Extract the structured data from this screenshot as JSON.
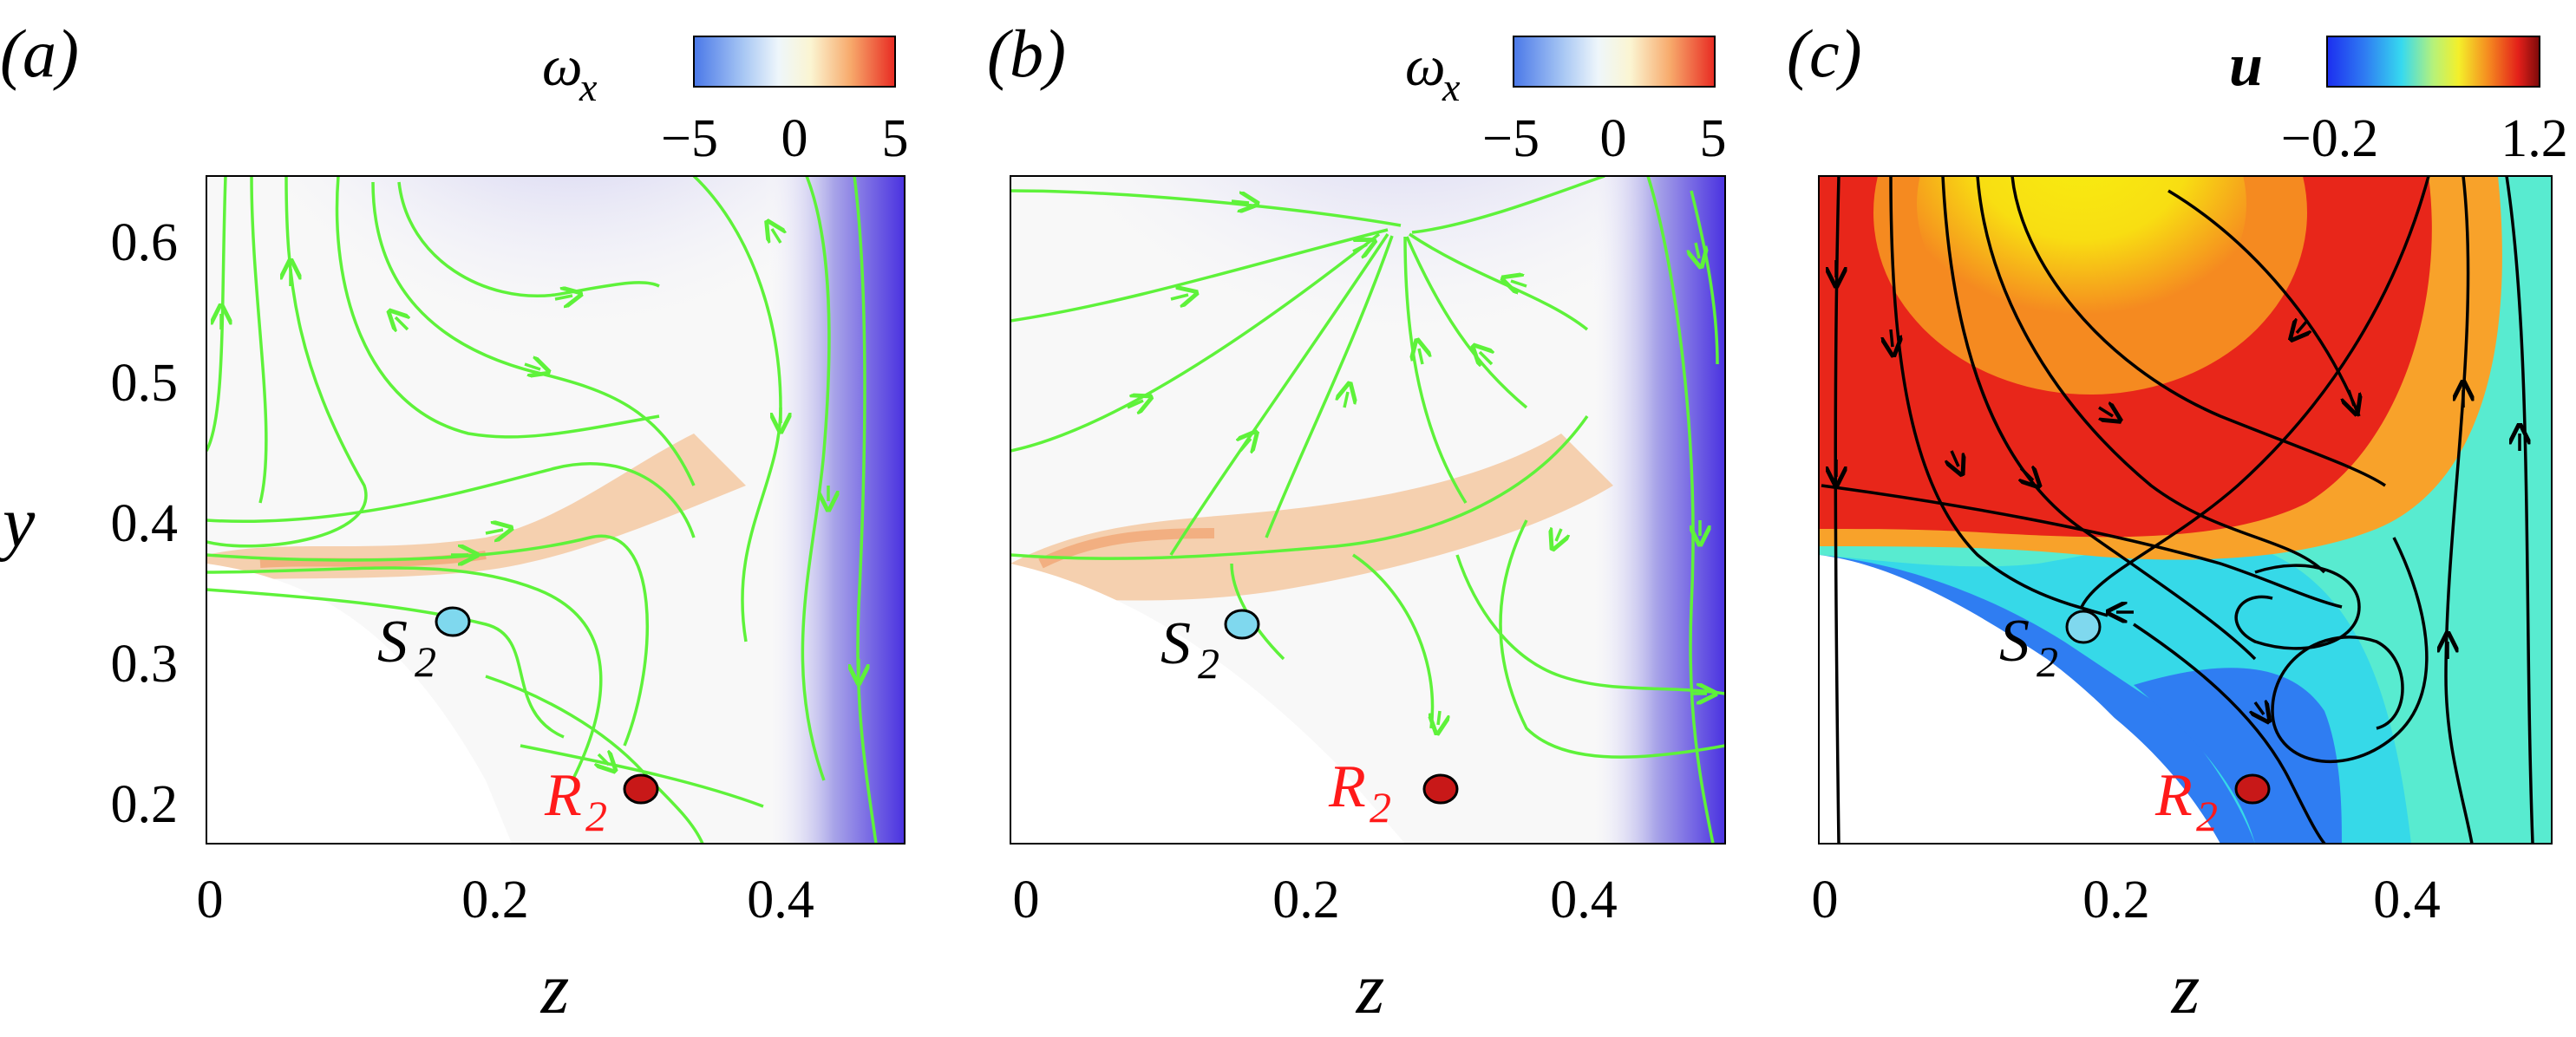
{
  "colors": {
    "streamline_green": "#5ef23a",
    "streamline_black": "#000000",
    "marker_s2": "#7fd8ee",
    "marker_r2": "#c81818",
    "r2_label": "#ff1a1a"
  },
  "panels": [
    {
      "label": "(a)",
      "colorbar": {
        "title": "ω",
        "title_sub": "x",
        "ticks": [
          "−5",
          "0",
          "5"
        ]
      },
      "xticks": [
        "0",
        "0.2",
        "0.4"
      ],
      "xlabel": "z",
      "markers": [
        {
          "name": "s2",
          "text": "S",
          "sub": "2"
        },
        {
          "name": "r2",
          "text": "R",
          "sub": "2"
        }
      ]
    },
    {
      "label": "(b)",
      "colorbar": {
        "title": "ω",
        "title_sub": "x",
        "ticks": [
          "−5",
          "0",
          "5"
        ]
      },
      "xticks": [
        "0",
        "0.2",
        "0.4"
      ],
      "xlabel": "z",
      "markers": [
        {
          "name": "s2",
          "text": "S",
          "sub": "2"
        },
        {
          "name": "r2",
          "text": "R",
          "sub": "2"
        }
      ]
    },
    {
      "label": "(c)",
      "colorbar": {
        "title": "u",
        "ticks": [
          "−0.2",
          "1.2"
        ]
      },
      "xticks": [
        "0",
        "0.2",
        "0.4"
      ],
      "xlabel": "z",
      "markers": [
        {
          "name": "s2",
          "text": "S",
          "sub": "2"
        },
        {
          "name": "r2",
          "text": "R",
          "sub": "2"
        }
      ]
    }
  ],
  "yaxis": {
    "label": "y",
    "ticks": [
      "0.6",
      "0.5",
      "0.4",
      "0.3",
      "0.2"
    ]
  }
}
